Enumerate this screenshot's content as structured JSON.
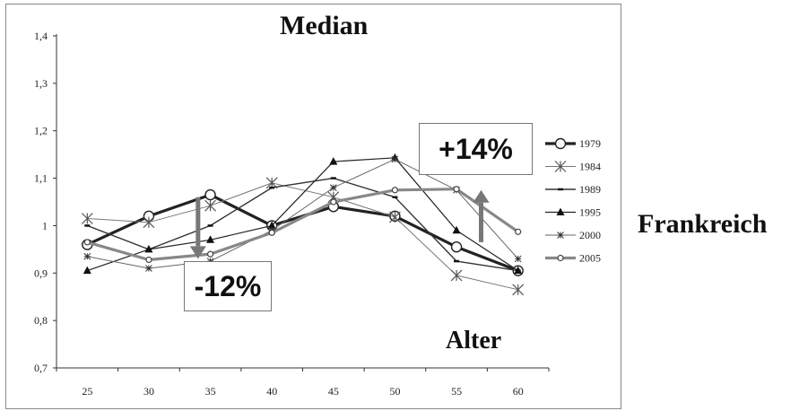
{
  "chart_data": {
    "type": "line",
    "title": "Median",
    "xlabel": "Alter",
    "ylabel": "",
    "side_label": "Frankreich",
    "x": [
      25,
      30,
      35,
      40,
      45,
      50,
      55,
      60
    ],
    "x_tick_labels": [
      "25",
      "30",
      "35",
      "40",
      "45",
      "50",
      "55",
      "60"
    ],
    "ylim": [
      0.7,
      1.4
    ],
    "y_ticks": [
      0.7,
      0.8,
      0.9,
      1.0,
      1.1,
      1.2,
      1.3,
      1.4
    ],
    "y_tick_labels": [
      "0,7",
      "0,8",
      "0,9",
      "1",
      "1,1",
      "1,2",
      "1,3",
      "1,4"
    ],
    "grid": false,
    "legend_position": "right",
    "series": [
      {
        "name": "1979",
        "marker": "open-circle",
        "width": 3.2,
        "color": "#222222",
        "values": [
          0.96,
          1.02,
          1.065,
          1.0,
          1.04,
          1.02,
          0.955,
          0.905
        ]
      },
      {
        "name": "1984",
        "marker": "asterisk",
        "width": 1,
        "color": "#777777",
        "values": [
          1.015,
          1.007,
          1.042,
          1.09,
          1.06,
          1.018,
          0.895,
          0.865
        ]
      },
      {
        "name": "1989",
        "marker": "dash",
        "width": 1.4,
        "color": "#333333",
        "values": [
          1.0,
          0.95,
          1.0,
          1.08,
          1.1,
          1.06,
          0.925,
          0.905
        ]
      },
      {
        "name": "1995",
        "marker": "triangle",
        "width": 1.2,
        "color": "#222222",
        "values": [
          0.905,
          0.95,
          0.97,
          1.0,
          1.135,
          1.143,
          0.99,
          0.905
        ]
      },
      {
        "name": "2000",
        "marker": "star",
        "width": 1,
        "color": "#666666",
        "values": [
          0.935,
          0.91,
          0.925,
          0.99,
          1.08,
          1.14,
          1.075,
          0.93
        ]
      },
      {
        "name": "2005",
        "marker": "open-circle-small",
        "width": 3.2,
        "color": "#888888",
        "values": [
          0.965,
          0.928,
          0.94,
          0.985,
          1.05,
          1.075,
          1.077,
          0.987
        ]
      }
    ],
    "annotations": [
      {
        "text": "-12%",
        "x": 34,
        "from": 1.06,
        "to": 0.93,
        "direction": "down"
      },
      {
        "text": "+14%",
        "x": 57,
        "from": 0.965,
        "to": 1.075,
        "direction": "up"
      }
    ]
  }
}
